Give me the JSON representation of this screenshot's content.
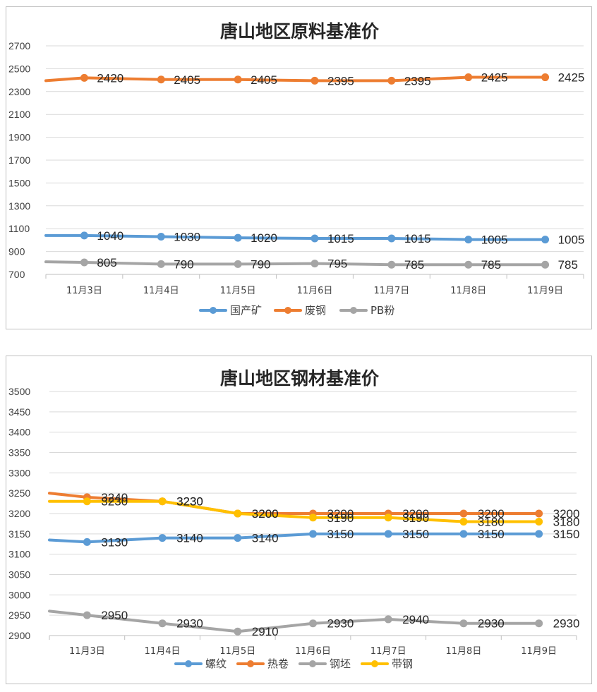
{
  "chart_data": [
    {
      "type": "line",
      "title": "唐山地区原料基准价",
      "categories": [
        "11月3日",
        "11月4日",
        "11月5日",
        "11月6日",
        "11月7日",
        "11月8日",
        "11月9日"
      ],
      "ylim": [
        700,
        2700
      ],
      "yticks": [
        700,
        900,
        1100,
        1300,
        1500,
        1700,
        1900,
        2100,
        2300,
        2500,
        2700
      ],
      "grid": true,
      "legend": "bottom",
      "series": [
        {
          "name": "国产矿",
          "color": "#5b9bd5",
          "lead": 1040,
          "values": [
            1040,
            1030,
            1020,
            1015,
            1015,
            1005,
            1005
          ]
        },
        {
          "name": "废钢",
          "color": "#ed7d31",
          "lead": 2395,
          "values": [
            2420,
            2405,
            2405,
            2395,
            2395,
            2425,
            2425
          ]
        },
        {
          "name": "PB粉",
          "color": "#a5a5a5",
          "lead": 810,
          "values": [
            805,
            790,
            790,
            795,
            785,
            785,
            785
          ]
        }
      ]
    },
    {
      "type": "line",
      "title": "唐山地区钢材基准价",
      "categories": [
        "11月3日",
        "11月4日",
        "11月5日",
        "11月6日",
        "11月7日",
        "11月8日",
        "11月9日"
      ],
      "ylim": [
        2900,
        3500
      ],
      "yticks": [
        2900,
        2950,
        3000,
        3050,
        3100,
        3150,
        3200,
        3250,
        3300,
        3350,
        3400,
        3450,
        3500
      ],
      "grid": true,
      "legend": "bottom",
      "series": [
        {
          "name": "螺纹",
          "color": "#5b9bd5",
          "lead": 3135,
          "values": [
            3130,
            3140,
            3140,
            3150,
            3150,
            3150,
            3150
          ]
        },
        {
          "name": "热卷",
          "color": "#ed7d31",
          "lead": 3250,
          "values": [
            3240,
            3230,
            3200,
            3200,
            3200,
            3200,
            3200
          ]
        },
        {
          "name": "钢坯",
          "color": "#a5a5a5",
          "lead": 2960,
          "values": [
            2950,
            2930,
            2910,
            2930,
            2940,
            2930,
            2930
          ]
        },
        {
          "name": "带钢",
          "color": "#ffc000",
          "lead": 3230,
          "values": [
            3230,
            3230,
            3200,
            3190,
            3190,
            3180,
            3180
          ]
        }
      ]
    }
  ]
}
